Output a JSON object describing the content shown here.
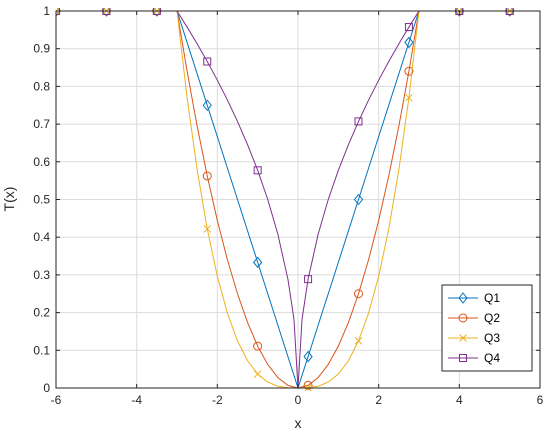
{
  "chart_data": {
    "type": "line",
    "title": "",
    "xlabel": "x",
    "ylabel": "T(x)",
    "xlim": [
      -6,
      6
    ],
    "ylim": [
      0,
      1
    ],
    "xticks": [
      -6,
      -4,
      -2,
      0,
      2,
      4,
      6
    ],
    "yticks": [
      0,
      0.1,
      0.2,
      0.3,
      0.4,
      0.5,
      0.6,
      0.7,
      0.8,
      0.9,
      1
    ],
    "xtick_labels": [
      "-6",
      "-4",
      "-2",
      "0",
      "2",
      "4",
      "6"
    ],
    "ytick_labels": [
      "0",
      "0.1",
      "0.2",
      "0.3",
      "0.4",
      "0.5",
      "0.6",
      "0.7",
      "0.8",
      "0.9",
      "1"
    ],
    "grid": true,
    "legend_position": "bottom-right",
    "x_markers": [
      -6,
      -4.75,
      -3.5,
      -2.25,
      -1,
      0.25,
      1.5,
      2.75,
      4,
      5.25
    ],
    "series": [
      {
        "name": "Q1",
        "color": "#0072BD",
        "marker": "diamond",
        "line_x": [
          -6,
          -3,
          -2.5,
          -2,
          -1.5,
          -1,
          -0.5,
          0,
          0.5,
          1,
          1.5,
          2,
          2.5,
          3,
          6
        ],
        "line_y": [
          1,
          1,
          0.8333,
          0.6667,
          0.5,
          0.3333,
          0.1667,
          0,
          0.1667,
          0.3333,
          0.5,
          0.6667,
          0.8333,
          1,
          1
        ],
        "marker_y": [
          1,
          1,
          1,
          0.75,
          0.3333,
          0.0833,
          0.5,
          0.9167,
          1,
          1
        ]
      },
      {
        "name": "Q2",
        "color": "#D95319",
        "marker": "circle",
        "line_x": [
          -6,
          -3,
          -2.75,
          -2.5,
          -2.25,
          -2,
          -1.75,
          -1.5,
          -1.25,
          -1,
          -0.75,
          -0.5,
          -0.25,
          0,
          0.25,
          0.5,
          0.75,
          1,
          1.25,
          1.5,
          1.75,
          2,
          2.25,
          2.5,
          2.75,
          3,
          6
        ],
        "line_y": [
          1,
          1,
          0.8403,
          0.6944,
          0.5625,
          0.4444,
          0.3403,
          0.25,
          0.1736,
          0.1111,
          0.0625,
          0.0278,
          0.0069,
          0,
          0.0069,
          0.0278,
          0.0625,
          0.1111,
          0.1736,
          0.25,
          0.3403,
          0.4444,
          0.5625,
          0.6944,
          0.8403,
          1,
          1
        ],
        "marker_y": [
          1,
          1,
          1,
          0.5625,
          0.1111,
          0.0069,
          0.25,
          0.8403,
          1,
          1
        ]
      },
      {
        "name": "Q3",
        "color": "#EDB120",
        "marker": "x",
        "line_x": [
          -6,
          -3,
          -2.75,
          -2.5,
          -2.25,
          -2,
          -1.75,
          -1.5,
          -1.25,
          -1,
          -0.75,
          -0.5,
          -0.25,
          0,
          0.25,
          0.5,
          0.75,
          1,
          1.25,
          1.5,
          1.75,
          2,
          2.25,
          2.5,
          2.75,
          3,
          6
        ],
        "line_y": [
          1,
          1,
          0.7701,
          0.5787,
          0.4219,
          0.2963,
          0.1985,
          0.125,
          0.0723,
          0.037,
          0.0156,
          0.0046,
          0.0006,
          0,
          0.0006,
          0.0046,
          0.0156,
          0.037,
          0.0723,
          0.125,
          0.1985,
          0.2963,
          0.4219,
          0.5787,
          0.7701,
          1,
          1
        ],
        "marker_y": [
          1,
          1,
          1,
          0.4219,
          0.037,
          0.0006,
          0.125,
          0.7701,
          1,
          1
        ]
      },
      {
        "name": "Q4",
        "color": "#7E2F8E",
        "marker": "square",
        "line_x": [
          -6,
          -3,
          -2.75,
          -2.5,
          -2.25,
          -2,
          -1.75,
          -1.5,
          -1.25,
          -1,
          -0.75,
          -0.5,
          -0.25,
          -0.1,
          0,
          0.1,
          0.25,
          0.5,
          0.75,
          1,
          1.25,
          1.5,
          1.75,
          2,
          2.25,
          2.5,
          2.75,
          3,
          6
        ],
        "line_y": [
          1,
          1,
          0.9574,
          0.9129,
          0.866,
          0.8165,
          0.7638,
          0.7071,
          0.6455,
          0.5774,
          0.5,
          0.4082,
          0.2887,
          0.1826,
          0,
          0.1826,
          0.2887,
          0.4082,
          0.5,
          0.5774,
          0.6455,
          0.7071,
          0.7638,
          0.8165,
          0.866,
          0.9129,
          0.9574,
          1,
          1
        ],
        "marker_y": [
          1,
          1,
          1,
          0.866,
          0.5774,
          0.2887,
          0.7071,
          0.9574,
          1,
          1
        ]
      }
    ]
  }
}
